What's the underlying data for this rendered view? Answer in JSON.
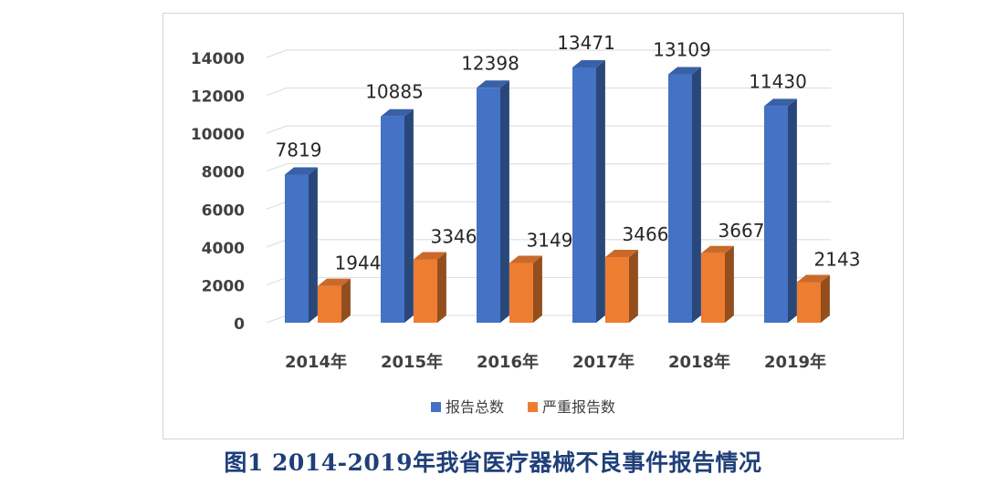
{
  "chart_data": {
    "type": "bar",
    "categories": [
      "2014年",
      "2015年",
      "2016年",
      "2017年",
      "2018年",
      "2019年"
    ],
    "series": [
      {
        "name": "报告总数",
        "values": [
          7819,
          10885,
          12398,
          13471,
          13109,
          11430
        ]
      },
      {
        "name": "严重报告数",
        "values": [
          1944,
          3346,
          3149,
          3466,
          3667,
          2143
        ]
      }
    ],
    "ylim": [
      0,
      14000
    ],
    "yticks": [
      0,
      2000,
      4000,
      6000,
      8000,
      10000,
      12000,
      14000
    ],
    "grid": true,
    "legend": "bottom",
    "style": "3d-clustered-column"
  },
  "colors": {
    "series1": "#4472c4",
    "series2": "#ed7d31",
    "caption": "#1f3f7a"
  },
  "caption": "图1  2014-2019年我省医疗器械不良事件报告情况"
}
